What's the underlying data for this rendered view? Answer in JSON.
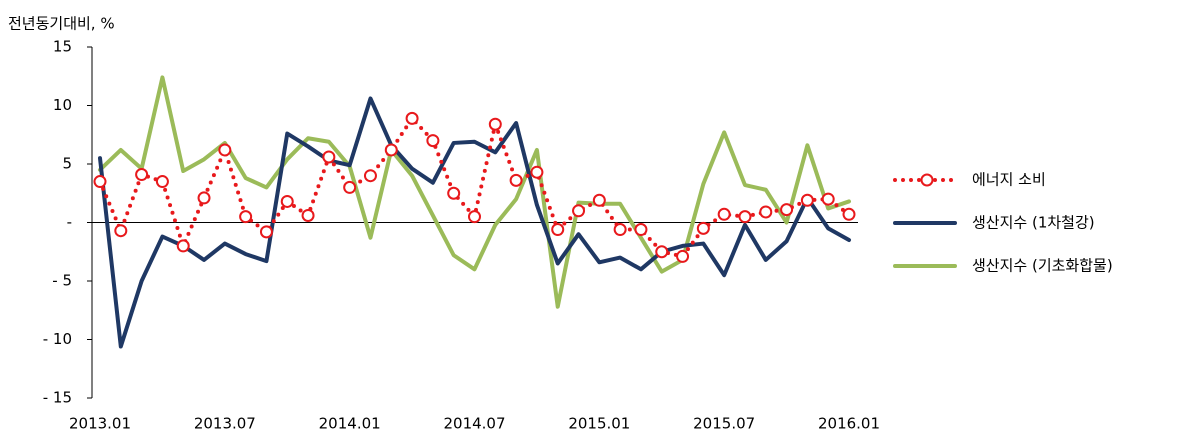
{
  "chart_data": {
    "type": "line",
    "y_axis_label": "전년동기대비, %",
    "categories": [
      "2013.01",
      null,
      null,
      null,
      null,
      null,
      "2013.07",
      null,
      null,
      null,
      null,
      null,
      "2014.01",
      null,
      null,
      null,
      null,
      null,
      "2014.07",
      null,
      null,
      null,
      null,
      null,
      "2015.01",
      null,
      null,
      null,
      null,
      null,
      "2015.07",
      null,
      null,
      null,
      null,
      null,
      "2016.01"
    ],
    "series": [
      {
        "name": "에너지 소비",
        "color": "#e8191c",
        "style": "dotted-markers",
        "values": [
          3.5,
          -0.7,
          4.1,
          3.5,
          -2.0,
          2.1,
          6.2,
          0.5,
          -0.8,
          1.8,
          0.6,
          5.6,
          3.0,
          4.0,
          6.2,
          8.9,
          7.0,
          2.5,
          0.5,
          8.4,
          3.6,
          4.3,
          -0.6,
          1.0,
          1.9,
          -0.6,
          -0.6,
          -2.5,
          -2.9,
          -0.5,
          0.7,
          0.5,
          0.9,
          1.1,
          1.9,
          2.0,
          0.7
        ]
      },
      {
        "name": "생산지수 (1차철강)",
        "color": "#1f3864",
        "style": "solid",
        "values": [
          5.5,
          -10.6,
          -5.0,
          -1.2,
          -2.0,
          -3.2,
          -1.8,
          -2.7,
          -3.3,
          7.6,
          6.5,
          5.3,
          4.9,
          10.6,
          6.6,
          4.6,
          3.4,
          6.8,
          6.9,
          6.0,
          8.5,
          1.5,
          -3.5,
          -1.0,
          -3.4,
          -3.0,
          -4.0,
          -2.5,
          -2.0,
          -1.8,
          -4.5,
          -0.2,
          -3.2,
          -1.6,
          2.1,
          -0.5,
          -1.5
        ]
      },
      {
        "name": "생산지수 (기초화합물)",
        "color": "#9bbb59",
        "style": "solid",
        "values": [
          4.5,
          6.2,
          4.6,
          12.4,
          4.4,
          5.4,
          6.8,
          3.8,
          3.0,
          5.4,
          7.2,
          6.9,
          4.8,
          -1.3,
          6.2,
          4.0,
          0.6,
          -2.8,
          -4.0,
          -0.2,
          2.0,
          6.2,
          -7.2,
          1.7,
          1.6,
          1.6,
          -1.3,
          -4.2,
          -3.2,
          3.3,
          7.7,
          3.2,
          2.8,
          0.0,
          6.6,
          1.2,
          1.8
        ]
      }
    ],
    "ylim": [
      -15,
      15
    ],
    "yticks": [
      {
        "value": -15,
        "label": "- 15"
      },
      {
        "value": -10,
        "label": "- 10"
      },
      {
        "value": -5,
        "label": "- 5"
      },
      {
        "value": 0,
        "label": "-"
      },
      5,
      10,
      15
    ],
    "legend": "right"
  }
}
